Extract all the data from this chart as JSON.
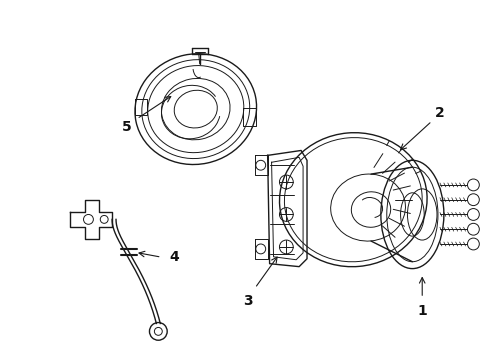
{
  "bg_color": "#ffffff",
  "line_color": "#1a1a1a",
  "label_color": "#111111",
  "figsize": [
    4.89,
    3.6
  ],
  "dpi": 100
}
